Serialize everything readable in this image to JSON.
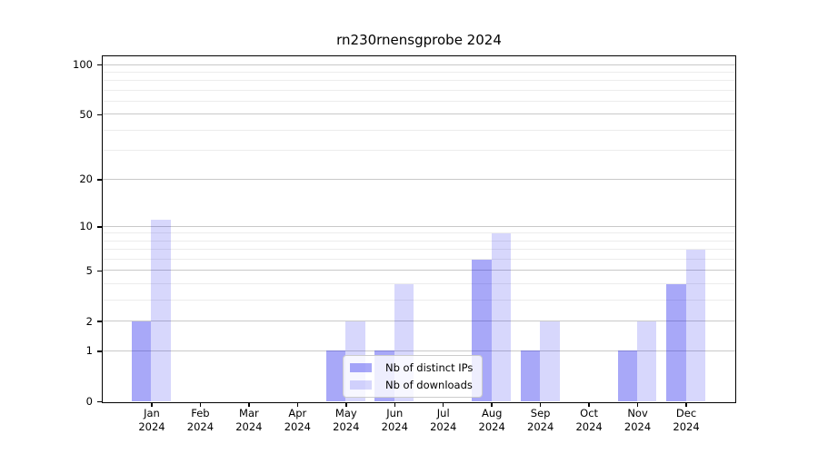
{
  "chart_data": {
    "type": "bar",
    "title": "rn230rnensgprobe 2024",
    "categories": [
      "Jan 2024",
      "Feb 2024",
      "Mar 2024",
      "Apr 2024",
      "May 2024",
      "Jun 2024",
      "Jul 2024",
      "Aug 2024",
      "Sep 2024",
      "Oct 2024",
      "Nov 2024",
      "Dec 2024"
    ],
    "series": [
      {
        "name": "Nb of distinct IPs",
        "color": "rgba(6,6,235,0.35)",
        "values": [
          2,
          0,
          0,
          0,
          1,
          1,
          0,
          6,
          1,
          0,
          1,
          4
        ]
      },
      {
        "name": "Nb of downloads",
        "color": "rgba(6,6,235,0.16)",
        "values": [
          11,
          0,
          0,
          0,
          2,
          4,
          0,
          9,
          2,
          0,
          2,
          7
        ]
      }
    ],
    "y_axis": {
      "scale": "log10(1+x)",
      "major_ticks": [
        0,
        1,
        2,
        5,
        10,
        20,
        50,
        100
      ],
      "minor_gridlines": [
        3,
        4,
        6,
        7,
        8,
        9,
        30,
        40,
        60,
        70,
        80,
        90
      ],
      "top_value": 112
    },
    "x_axis": {
      "label_lines": 2
    },
    "grid": true,
    "legend_position": "lower center",
    "colors": {
      "major_grid": "#c9c9c9",
      "minor_grid": "#ececec",
      "axis": "#000000"
    }
  }
}
